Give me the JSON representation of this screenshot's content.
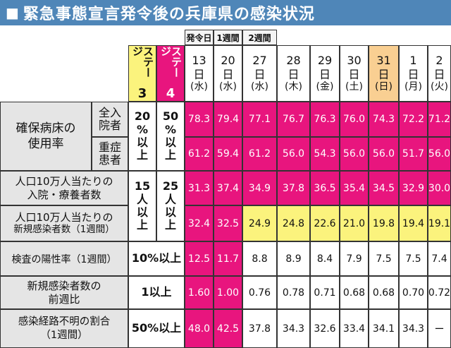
{
  "title": "緊急事態宣言発令後の兵庫県の感染状況",
  "phases": [
    "発令日",
    "1週間",
    "2週間"
  ],
  "stages": [
    {
      "word": "ステージ",
      "num": "3",
      "color": "#fbf37d",
      "text_color": "#111111"
    },
    {
      "word": "ステージ",
      "num": "4",
      "color": "#e8157e",
      "text_color": "#ffffff"
    }
  ],
  "dates": [
    {
      "day": "13",
      "unit": "日",
      "wd": "(水)"
    },
    {
      "day": "20",
      "unit": "日",
      "wd": "(水)"
    },
    {
      "day": "27",
      "unit": "日",
      "wd": "(水)"
    },
    {
      "day": "28",
      "unit": "日",
      "wd": "(木)"
    },
    {
      "day": "29",
      "unit": "日",
      "wd": "(金)"
    },
    {
      "day": "30",
      "unit": "日",
      "wd": "(土)"
    },
    {
      "day": "31",
      "unit": "日",
      "wd": "(日)"
    },
    {
      "day": "1",
      "unit": "日",
      "wd": "(月)"
    },
    {
      "day": "2",
      "unit": "日",
      "wd": "(火)"
    }
  ],
  "labels": {
    "bed": [
      "確保病床の",
      "使用率"
    ],
    "hosp": [
      "全入",
      "院者"
    ],
    "severe": [
      "重症",
      "患者"
    ],
    "r3": [
      "人口10万人当たりの",
      "入院・療養者数"
    ],
    "r4": [
      "人口10万人当たりの",
      "新規感染者数（1週間）"
    ],
    "r5": "検査の陽性率（1週間）",
    "r6": [
      "新規感染者数の",
      "前週比"
    ],
    "r7": [
      "感染経路不明の割合",
      "（1週間）"
    ]
  },
  "thresholds": {
    "bed3": [
      "20",
      "%",
      "以",
      "上"
    ],
    "bed4": [
      "50",
      "%",
      "以",
      "上"
    ],
    "r34_3": [
      "15",
      "人",
      "以",
      "上"
    ],
    "r34_4": [
      "25",
      "人",
      "以",
      "上"
    ],
    "r5": "10%以上",
    "r6": "1以上",
    "r7": "50%以上"
  },
  "rows": {
    "hosp": [
      "78.3",
      "79.4",
      "77.1",
      "76.7",
      "76.3",
      "76.0",
      "74.3",
      "72.2",
      "71.2"
    ],
    "severe": [
      "61.2",
      "59.4",
      "61.2",
      "56.0",
      "54.3",
      "56.0",
      "56.0",
      "51.7",
      "56.0"
    ],
    "r3": [
      "31.3",
      "37.4",
      "34.9",
      "37.8",
      "36.5",
      "35.4",
      "34.5",
      "32.9",
      "30.0"
    ],
    "r4": [
      "32.4",
      "32.5",
      "24.9",
      "24.8",
      "22.6",
      "21.0",
      "19.8",
      "19.4",
      "19.1"
    ],
    "r5": [
      "12.5",
      "11.7",
      "8.8",
      "8.9",
      "8.4",
      "7.9",
      "7.5",
      "7.5",
      "7.4"
    ],
    "r6": [
      "1.60",
      "1.00",
      "0.76",
      "0.78",
      "0.71",
      "0.68",
      "0.68",
      "0.70",
      "0.72"
    ],
    "r7": [
      "48.0",
      "42.5",
      "37.8",
      "34.3",
      "32.6",
      "33.4",
      "34.1",
      "34.3",
      "ー"
    ]
  },
  "colors": {
    "stage4": "#e8157e",
    "stage3": "#fbf37d",
    "sunday": "#f9cf92",
    "header_gray": "#e5e5e5",
    "title_bar": "#4f86b8"
  }
}
